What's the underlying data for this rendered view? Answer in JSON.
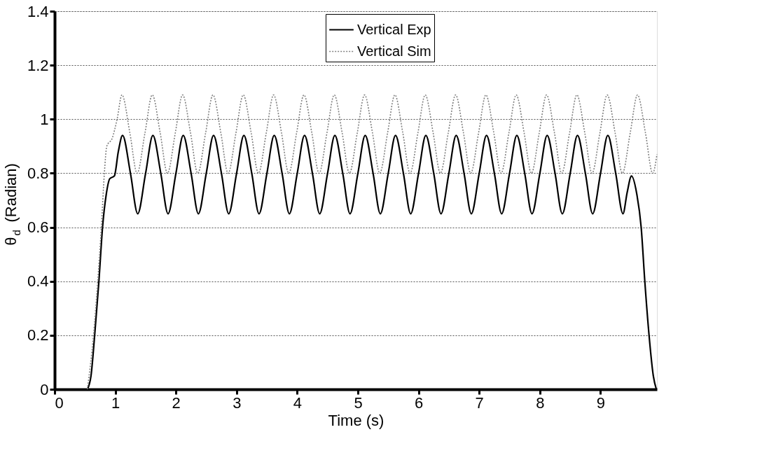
{
  "chart_data": {
    "type": "line",
    "xlabel": "Time (s)",
    "ylabel": "θ$_{d}$ (Radian)",
    "xlim": [
      0,
      9.93
    ],
    "xticks": [
      0,
      1,
      2,
      3,
      4,
      5,
      6,
      7,
      8,
      9
    ],
    "ylim": [
      0,
      1.4
    ],
    "yticks": [
      0,
      0.2,
      0.4,
      0.6,
      0.8,
      1,
      1.2,
      1.4
    ],
    "grid": "y",
    "legend": "top",
    "series": [
      {
        "name": "Vertical Exp",
        "color": "#000000",
        "line_style": "solid",
        "x": [
          0.54,
          0.6,
          0.66,
          0.73,
          0.79,
          0.85,
          0.91,
          0.985,
          1.05,
          1.12,
          1.25,
          1.37,
          1.5,
          1.62,
          1.75,
          1.87,
          2.0,
          2.12,
          2.25,
          2.37,
          2.5,
          2.62,
          2.75,
          2.87,
          3.0,
          3.12,
          3.25,
          3.37,
          3.5,
          3.62,
          3.75,
          3.87,
          4.0,
          4.12,
          4.25,
          4.37,
          4.5,
          4.62,
          4.75,
          4.87,
          5.0,
          5.12,
          5.25,
          5.37,
          5.5,
          5.62,
          5.75,
          5.87,
          6.0,
          6.12,
          6.25,
          6.37,
          6.5,
          6.62,
          6.75,
          6.87,
          7.0,
          7.12,
          7.25,
          7.37,
          7.5,
          7.62,
          7.75,
          7.87,
          8.0,
          8.12,
          8.25,
          8.37,
          8.5,
          8.62,
          8.75,
          8.87,
          9.0,
          9.12,
          9.25,
          9.37,
          9.44,
          9.51,
          9.6,
          9.67,
          9.73,
          9.8,
          9.87,
          9.92
        ],
        "values": [
          0,
          0.05,
          0.2,
          0.4,
          0.6,
          0.72,
          0.78,
          0.79,
          0.88,
          0.94,
          0.8,
          0.65,
          0.8,
          0.94,
          0.8,
          0.65,
          0.8,
          0.94,
          0.8,
          0.65,
          0.8,
          0.94,
          0.8,
          0.65,
          0.8,
          0.94,
          0.8,
          0.65,
          0.8,
          0.94,
          0.8,
          0.65,
          0.8,
          0.94,
          0.8,
          0.65,
          0.8,
          0.94,
          0.8,
          0.65,
          0.8,
          0.94,
          0.8,
          0.65,
          0.8,
          0.94,
          0.8,
          0.65,
          0.8,
          0.94,
          0.8,
          0.65,
          0.8,
          0.94,
          0.8,
          0.65,
          0.8,
          0.94,
          0.8,
          0.65,
          0.8,
          0.94,
          0.8,
          0.65,
          0.8,
          0.94,
          0.8,
          0.65,
          0.8,
          0.94,
          0.8,
          0.65,
          0.8,
          0.94,
          0.8,
          0.65,
          0.73,
          0.79,
          0.72,
          0.6,
          0.4,
          0.2,
          0.05,
          0
        ]
      },
      {
        "name": "Vertical Sim",
        "color": "#808080",
        "line_style": "dotted",
        "x": [
          0.54,
          0.64,
          0.71,
          0.77,
          0.82,
          0.86,
          0.95,
          1.03,
          1.11,
          1.24,
          1.36,
          1.49,
          1.61,
          1.74,
          1.86,
          1.99,
          2.11,
          2.24,
          2.36,
          2.49,
          2.61,
          2.74,
          2.86,
          2.99,
          3.11,
          3.24,
          3.36,
          3.49,
          3.61,
          3.74,
          3.86,
          3.99,
          4.11,
          4.24,
          4.36,
          4.49,
          4.61,
          4.74,
          4.86,
          4.99,
          5.11,
          5.24,
          5.36,
          5.49,
          5.61,
          5.74,
          5.86,
          5.99,
          6.11,
          6.24,
          6.36,
          6.49,
          6.61,
          6.74,
          6.86,
          6.99,
          7.11,
          7.24,
          7.36,
          7.49,
          7.61,
          7.74,
          7.86,
          7.99,
          8.11,
          8.24,
          8.36,
          8.49,
          8.61,
          8.74,
          8.86,
          8.99,
          9.11,
          9.24,
          9.36,
          9.49,
          9.61,
          9.74,
          9.86,
          9.93
        ],
        "values": [
          0,
          0.2,
          0.4,
          0.6,
          0.8,
          0.9,
          0.93,
          1.0,
          1.09,
          0.95,
          0.8,
          0.95,
          1.09,
          0.95,
          0.8,
          0.95,
          1.09,
          0.95,
          0.8,
          0.95,
          1.09,
          0.95,
          0.8,
          0.95,
          1.09,
          0.95,
          0.8,
          0.95,
          1.09,
          0.95,
          0.8,
          0.95,
          1.09,
          0.95,
          0.8,
          0.95,
          1.09,
          0.95,
          0.8,
          0.95,
          1.09,
          0.95,
          0.8,
          0.95,
          1.09,
          0.95,
          0.8,
          0.95,
          1.09,
          0.95,
          0.8,
          0.95,
          1.09,
          0.95,
          0.8,
          0.95,
          1.09,
          0.95,
          0.8,
          0.95,
          1.09,
          0.95,
          0.8,
          0.95,
          1.09,
          0.95,
          0.8,
          0.95,
          1.09,
          0.95,
          0.8,
          0.95,
          1.09,
          0.95,
          0.8,
          0.95,
          1.09,
          0.95,
          0.8,
          0.87
        ]
      }
    ]
  }
}
